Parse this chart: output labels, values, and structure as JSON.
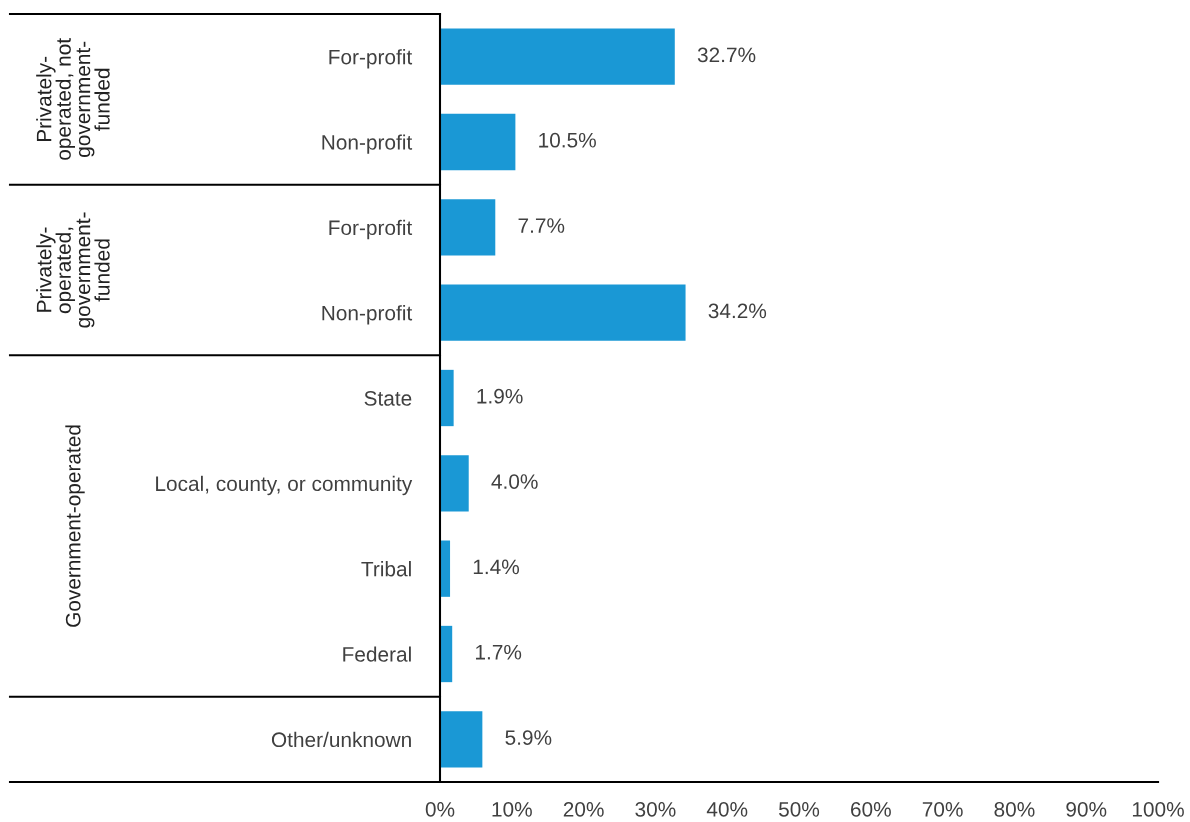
{
  "chart_data": {
    "type": "bar",
    "orientation": "horizontal",
    "categories": [
      "For-profit",
      "Non-profit",
      "For-profit",
      "Non-profit",
      "State",
      "Local, county, or community",
      "Tribal",
      "Federal",
      "Other/unknown"
    ],
    "values": [
      32.7,
      10.5,
      7.7,
      34.2,
      1.9,
      4.0,
      1.4,
      1.7,
      5.9
    ],
    "value_labels": [
      "32.7%",
      "10.5%",
      "7.7%",
      "34.2%",
      "1.9%",
      "4.0%",
      "1.4%",
      "1.7%",
      "5.9%"
    ],
    "color": "#1a98d5",
    "xlim": [
      0,
      100
    ],
    "xticks": [
      {
        "value": 0,
        "label": "0%"
      },
      {
        "value": 10,
        "label": "10%"
      },
      {
        "value": 20,
        "label": "20%"
      },
      {
        "value": 30,
        "label": "30%"
      },
      {
        "value": 40,
        "label": "40%"
      },
      {
        "value": 50,
        "label": "50%"
      },
      {
        "value": 60,
        "label": "60%"
      },
      {
        "value": 70,
        "label": "70%"
      },
      {
        "value": 80,
        "label": "80%"
      },
      {
        "value": 90,
        "label": "90%"
      },
      {
        "value": 100,
        "label": "100%"
      }
    ],
    "annotations": [
      "Privately-operated, not government-funded",
      "Privately-operated, government-funded",
      "Government-operated"
    ],
    "grid": false,
    "legend": false
  }
}
